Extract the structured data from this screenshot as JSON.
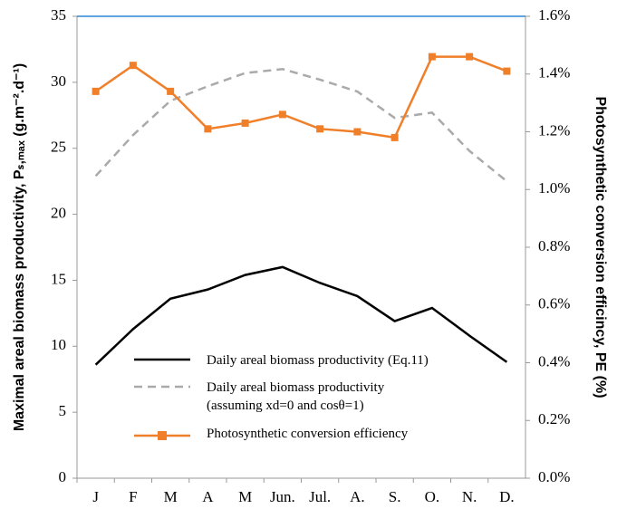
{
  "chart_data": {
    "type": "line",
    "categories": [
      "J",
      "F",
      "M",
      "A",
      "M",
      "Jun.",
      "Jul.",
      "A.",
      "S.",
      "O.",
      "N.",
      "D."
    ],
    "y_label": "Maximal areal biomass productivity, Pₛ,ₘₐₓ (g.m⁻².d⁻¹)",
    "y2_label": "Photosynthetic conversion efficincy, PE (%)",
    "ylim": [
      0,
      35
    ],
    "yticks": [
      0,
      5,
      10,
      15,
      20,
      25,
      30,
      35
    ],
    "y2lim": [
      0,
      1.6
    ],
    "y2ticks": [
      {
        "value": 0,
        "label": "0.0%"
      },
      {
        "value": 0.2,
        "label": "0.2%"
      },
      {
        "value": 0.4,
        "label": "0.4%"
      },
      {
        "value": 0.6,
        "label": "0.6%"
      },
      {
        "value": 0.8,
        "label": "0.8%"
      },
      {
        "value": 1.0,
        "label": "1.0%"
      },
      {
        "value": 1.2,
        "label": "1.2%"
      },
      {
        "value": 1.4,
        "label": "1.4%"
      },
      {
        "value": 1.6,
        "label": "1.6%"
      }
    ],
    "series": [
      {
        "name": "Daily areal biomass productivity (Eq.11)",
        "color": "#000000",
        "style": "solid",
        "values": [
          8.6,
          11.3,
          13.6,
          14.3,
          15.4,
          16.0,
          14.8,
          13.8,
          11.9,
          12.9,
          10.8,
          8.8
        ]
      },
      {
        "name": "Daily areal biomass productivity (assuming xd=0 and cosθ=1)",
        "color": "#aaaaaa",
        "style": "dashed",
        "values": [
          22.9,
          26.0,
          28.6,
          29.7,
          30.7,
          31.0,
          30.2,
          29.3,
          27.3,
          27.7,
          24.8,
          22.5
        ]
      },
      {
        "name": "Photosynthetic conversion efficiency",
        "color": "#f07f2a",
        "style": "solid",
        "marker": "square",
        "axis": "y2",
        "values": [
          1.34,
          1.43,
          1.34,
          1.21,
          1.23,
          1.26,
          1.21,
          1.2,
          1.18,
          1.46,
          1.46,
          1.41
        ]
      }
    ]
  }
}
